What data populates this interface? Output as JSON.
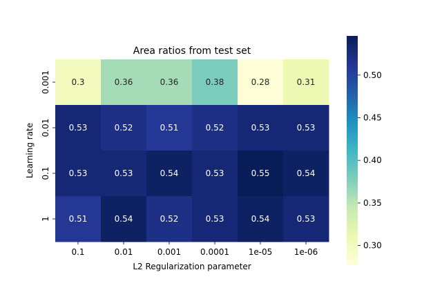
{
  "chart_data": {
    "type": "heatmap",
    "title": "Area ratios from test set",
    "xlabel": "L2 Regularization parameter",
    "ylabel": "Learning rate",
    "x_categories": [
      "0.1",
      "0.01",
      "0.001",
      "0.0001",
      "1e-05",
      "1e-06"
    ],
    "y_categories": [
      "0.001",
      "0.01",
      "0.1",
      "1"
    ],
    "values": [
      [
        0.3,
        0.36,
        0.36,
        0.38,
        0.28,
        0.31
      ],
      [
        0.53,
        0.52,
        0.51,
        0.52,
        0.53,
        0.53
      ],
      [
        0.53,
        0.53,
        0.54,
        0.53,
        0.55,
        0.54
      ],
      [
        0.51,
        0.54,
        0.52,
        0.53,
        0.54,
        0.53
      ]
    ],
    "labels": [
      [
        "0.3",
        "0.36",
        "0.36",
        "0.38",
        "0.28",
        "0.31"
      ],
      [
        "0.53",
        "0.52",
        "0.51",
        "0.52",
        "0.53",
        "0.53"
      ],
      [
        "0.53",
        "0.53",
        "0.54",
        "0.53",
        "0.55",
        "0.54"
      ],
      [
        "0.51",
        "0.54",
        "0.52",
        "0.53",
        "0.54",
        "0.53"
      ]
    ],
    "colormap": "YlGnBu",
    "colorbar": {
      "range": [
        0.277,
        0.546
      ],
      "ticks": [
        0.3,
        0.35,
        0.4,
        0.45,
        0.5
      ],
      "tick_labels": [
        "0.30",
        "0.35",
        "0.40",
        "0.45",
        "0.50"
      ]
    }
  }
}
